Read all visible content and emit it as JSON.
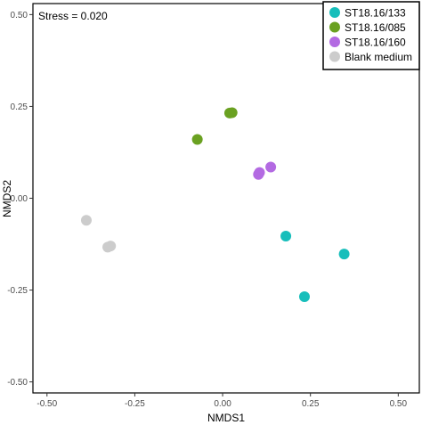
{
  "chart_data": {
    "type": "scatter",
    "xlabel": "NMDS1",
    "ylabel": "NMDS2",
    "xlim": [
      -0.54,
      0.56
    ],
    "ylim": [
      -0.53,
      0.53
    ],
    "x_ticks": [
      -0.5,
      -0.25,
      0.0,
      0.25,
      0.5
    ],
    "x_tick_labels": [
      "-0.50",
      "-0.25",
      "0.00",
      "0.25",
      "0.50"
    ],
    "y_ticks": [
      -0.5,
      -0.25,
      0.0,
      0.25,
      0.5
    ],
    "y_tick_labels": [
      "-0.50",
      "-0.25",
      "0.00",
      "0.25",
      "0.50"
    ],
    "annotation": "Stress = 0.020",
    "grid": false,
    "legend_position": "top-right",
    "series": [
      {
        "name": "ST18.16/133",
        "color": "#17bebb",
        "points": [
          [
            0.18,
            -0.103
          ],
          [
            0.346,
            -0.152
          ],
          [
            0.233,
            -0.268
          ]
        ]
      },
      {
        "name": "ST18.16/085",
        "color": "#6aa121",
        "points": [
          [
            0.02,
            0.232
          ],
          [
            0.027,
            0.233
          ],
          [
            -0.072,
            0.16
          ]
        ]
      },
      {
        "name": "ST18.16/160",
        "color": "#b36ae2",
        "points": [
          [
            0.137,
            0.085
          ],
          [
            0.102,
            0.065
          ],
          [
            0.105,
            0.07
          ]
        ]
      },
      {
        "name": "Blank medium",
        "color": "#cccccc",
        "points": [
          [
            -0.388,
            -0.06
          ],
          [
            -0.327,
            -0.133
          ],
          [
            -0.319,
            -0.13
          ]
        ]
      }
    ]
  }
}
